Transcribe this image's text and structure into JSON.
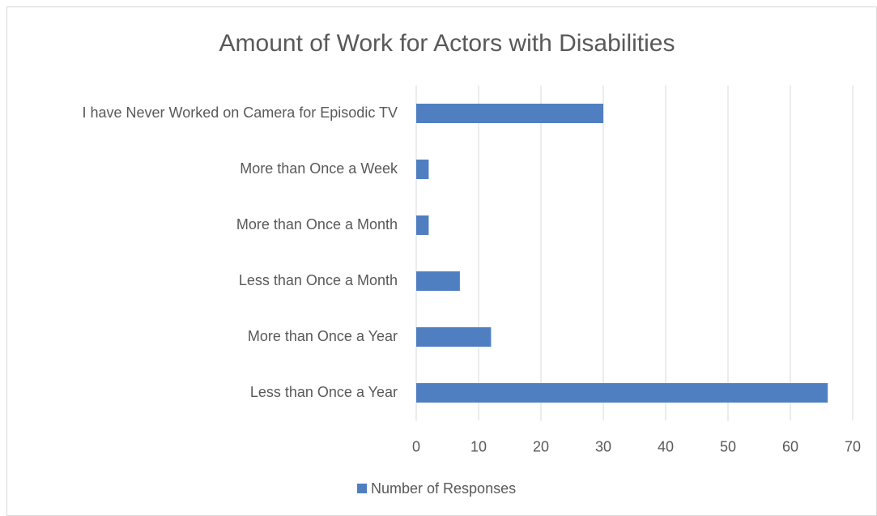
{
  "chart_data": {
    "type": "bar",
    "orientation": "horizontal",
    "title": "Amount of Work for Actors with Disabilities",
    "categories": [
      "I have Never Worked on Camera for Episodic TV",
      "More than Once a Week",
      "More than Once a Month",
      "Less than Once a Month",
      "More than Once a Year",
      "Less than Once a Year"
    ],
    "series": [
      {
        "name": "Number of Responses",
        "color": "#4f7fc1",
        "values": [
          30,
          2,
          2,
          7,
          12,
          66
        ]
      }
    ],
    "xlim": [
      0,
      70
    ],
    "xticks": [
      0,
      10,
      20,
      30,
      40,
      50,
      60,
      70
    ],
    "grid": true,
    "legend": "bottom"
  }
}
